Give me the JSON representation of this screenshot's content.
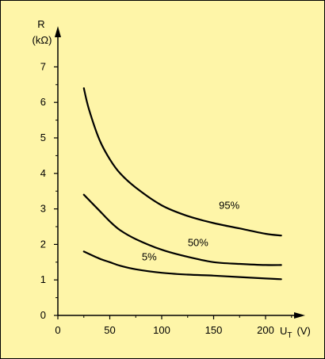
{
  "colors": {
    "background": "#fef5a8",
    "ink": "#000000"
  },
  "chart_data": {
    "type": "line",
    "title": "",
    "ylabel": "R",
    "yunit": "(kΩ)",
    "xlabel": "U",
    "xlabel_subscript": "T",
    "xunit": "(V)",
    "xlim": [
      0,
      230
    ],
    "ylim": [
      0,
      7.5
    ],
    "x_ticks": [
      0,
      50,
      100,
      150,
      200
    ],
    "y_ticks": [
      0,
      1,
      2,
      3,
      4,
      5,
      6,
      7
    ],
    "x_tick_labels": [
      "0",
      "50",
      "100",
      "150",
      "200"
    ],
    "y_tick_labels": [
      "0",
      "1",
      "2",
      "3",
      "4",
      "5",
      "6",
      "7"
    ],
    "grid": false,
    "legend": "none",
    "series": [
      {
        "name": "95%",
        "x": [
          25,
          30,
          40,
          50,
          60,
          75,
          100,
          125,
          150,
          175,
          200,
          215
        ],
        "y": [
          6.4,
          5.8,
          4.95,
          4.4,
          4.0,
          3.6,
          3.1,
          2.8,
          2.6,
          2.45,
          2.3,
          2.25
        ]
      },
      {
        "name": "50%",
        "x": [
          25,
          40,
          50,
          60,
          75,
          100,
          125,
          150,
          175,
          200,
          215
        ],
        "y": [
          3.4,
          2.95,
          2.65,
          2.4,
          2.15,
          1.85,
          1.65,
          1.5,
          1.45,
          1.42,
          1.42
        ]
      },
      {
        "name": "5%",
        "x": [
          25,
          40,
          50,
          60,
          75,
          100,
          125,
          150,
          175,
          200,
          215
        ],
        "y": [
          1.8,
          1.6,
          1.5,
          1.4,
          1.3,
          1.2,
          1.15,
          1.12,
          1.08,
          1.04,
          1.02
        ]
      }
    ]
  }
}
